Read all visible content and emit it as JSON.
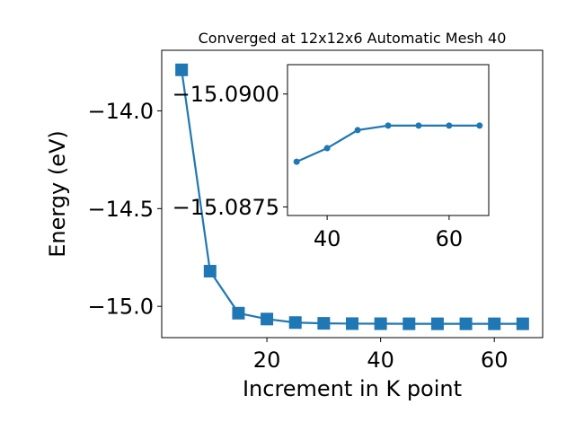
{
  "chart_data": [
    {
      "type": "line",
      "title": "Converged at 12x12x6 Automatic Mesh 40",
      "xlabel": "Increment in K point",
      "ylabel": "Energy (eV)",
      "xlim": [
        1.5,
        68.5
      ],
      "ylim": [
        -15.16,
        -13.69
      ],
      "xticks": [
        20,
        40,
        60
      ],
      "xtick_labels": [
        "20",
        "40",
        "60"
      ],
      "yticks": [
        -14.0,
        -14.5,
        -15.0
      ],
      "ytick_labels": [
        "−14.0",
        "−14.5",
        "−15.0"
      ],
      "grid": false,
      "legend": "none",
      "marker": "square",
      "color": "#1f77b4",
      "series": [
        {
          "x": [
            5,
            10,
            15,
            20,
            25,
            30,
            35,
            40,
            45,
            50,
            55,
            60,
            65
          ],
          "y": [
            -13.79,
            -14.82,
            -15.035,
            -15.065,
            -15.083,
            -15.087,
            -15.0885,
            -15.0888,
            -15.0892,
            -15.0893,
            -15.0893,
            -15.0893,
            -15.0893
          ]
        }
      ]
    },
    {
      "type": "line",
      "title": "",
      "xlabel": "",
      "ylabel": "",
      "xlim": [
        33.5,
        66.5
      ],
      "ylim": [
        -15.08731,
        -15.09065
      ],
      "xticks": [
        40,
        60
      ],
      "xtick_labels": [
        "40",
        "60"
      ],
      "yticks": [
        -15.09,
        -15.0875
      ],
      "ytick_labels": [
        "−15.0900",
        "−15.0875"
      ],
      "grid": false,
      "legend": "none",
      "marker": "circle",
      "color": "#1f77b4",
      "series": [
        {
          "x": [
            35,
            40,
            45,
            50,
            55,
            60,
            65
          ],
          "y": [
            -15.0885,
            -15.0888,
            -15.0892,
            -15.0893,
            -15.0893,
            -15.0893,
            -15.0893
          ]
        }
      ]
    }
  ]
}
